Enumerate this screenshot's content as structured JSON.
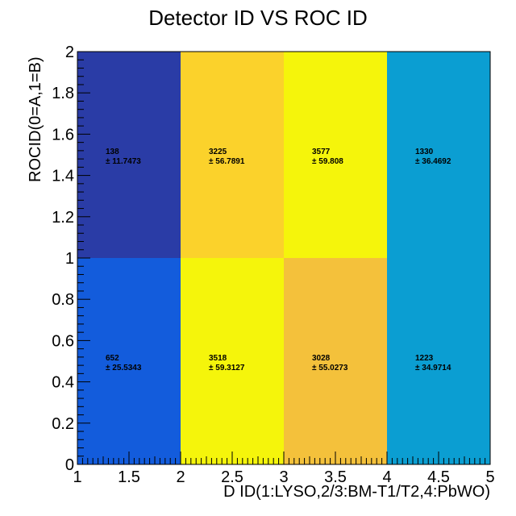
{
  "chart_data": {
    "type": "heatmap",
    "title": "Detector ID VS ROC ID",
    "xlabel": "D ID(1:LYSO,2/3:BM-T1/T2,4:PbWO)",
    "ylabel": "ROCID(0=A,1=B)",
    "xlim": [
      1,
      5
    ],
    "ylim": [
      0,
      2
    ],
    "x_ticks": [
      "1",
      "1.5",
      "2",
      "2.5",
      "3",
      "3.5",
      "4",
      "4.5",
      "5"
    ],
    "y_ticks": [
      "0",
      "0.2",
      "0.4",
      "0.6",
      "0.8",
      "1",
      "1.2",
      "1.4",
      "1.6",
      "1.8",
      "2"
    ],
    "x_bin_edges": [
      1,
      2,
      3,
      4,
      5
    ],
    "y_bin_edges": [
      0,
      1,
      2
    ],
    "cells": [
      {
        "x": 1,
        "y": 0,
        "value": "652",
        "error": "± 25.5343",
        "color": "#135cdc"
      },
      {
        "x": 2,
        "y": 0,
        "value": "3518",
        "error": "± 59.3127",
        "color": "#f5f50b"
      },
      {
        "x": 3,
        "y": 0,
        "value": "3028",
        "error": "± 55.0273",
        "color": "#f4c13b"
      },
      {
        "x": 4,
        "y": 0,
        "value": "1223",
        "error": "± 34.9714",
        "color": "#0b9ed2"
      },
      {
        "x": 1,
        "y": 1,
        "value": "138",
        "error": "± 11.7473",
        "color": "#2a3ca6"
      },
      {
        "x": 2,
        "y": 1,
        "value": "3225",
        "error": "± 56.7891",
        "color": "#fbd22b"
      },
      {
        "x": 3,
        "y": 1,
        "value": "3577",
        "error": "± 59.808",
        "color": "#f5f50b"
      },
      {
        "x": 4,
        "y": 1,
        "value": "1330",
        "error": "± 36.4692",
        "color": "#0b9ed2"
      }
    ]
  }
}
